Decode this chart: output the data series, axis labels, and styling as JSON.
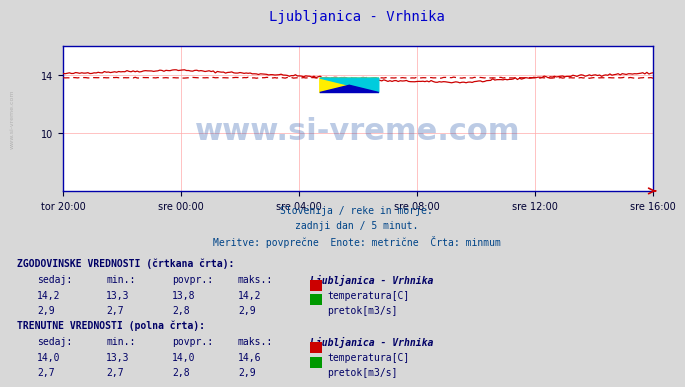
{
  "title": "Ljubljanica - Vrhnika",
  "title_color": "#0000cc",
  "bg_color": "#d8d8d8",
  "plot_bg_color": "#ffffff",
  "grid_color": "#ffaaaa",
  "axis_color": "#0000aa",
  "xlabel_ticks": [
    "tor 20:00",
    "sre 00:00",
    "sre 04:00",
    "sre 08:00",
    "sre 12:00",
    "sre 16:00"
  ],
  "ylim": [
    6,
    16
  ],
  "yticks": [
    10,
    14
  ],
  "watermark_text": "www.si-vreme.com",
  "watermark_color": "#2255aa",
  "watermark_alpha": 0.3,
  "subtitle1": "Slovenija / reke in morje.",
  "subtitle2": "zadnji dan / 5 minut.",
  "subtitle3": "Meritve: povprečne  Enote: metrične  Črta: minmum",
  "subtitle_color": "#004488",
  "table_title1": "ZGODOVINSKE VREDNOSTI (črtkana črta):",
  "table_title2": "TRENUTNE VREDNOSTI (polna črta):",
  "table_station": "Ljubljanica - Vrhnika",
  "hist_temp_sedaj": "14,2",
  "hist_temp_min": "13,3",
  "hist_temp_povpr": "13,8",
  "hist_temp_maks": "14,2",
  "hist_pretok_sedaj": "2,9",
  "hist_pretok_min": "2,7",
  "hist_pretok_povpr": "2,8",
  "hist_pretok_maks": "2,9",
  "curr_temp_sedaj": "14,0",
  "curr_temp_min": "13,3",
  "curr_temp_povpr": "14,0",
  "curr_temp_maks": "14,6",
  "curr_pretok_sedaj": "2,7",
  "curr_pretok_min": "2,7",
  "curr_pretok_povpr": "2,8",
  "curr_pretok_maks": "2,9",
  "temp_color": "#cc0000",
  "pretok_color": "#009900",
  "n_points": 288,
  "tick_font_color": "#000033",
  "table_color": "#000066"
}
